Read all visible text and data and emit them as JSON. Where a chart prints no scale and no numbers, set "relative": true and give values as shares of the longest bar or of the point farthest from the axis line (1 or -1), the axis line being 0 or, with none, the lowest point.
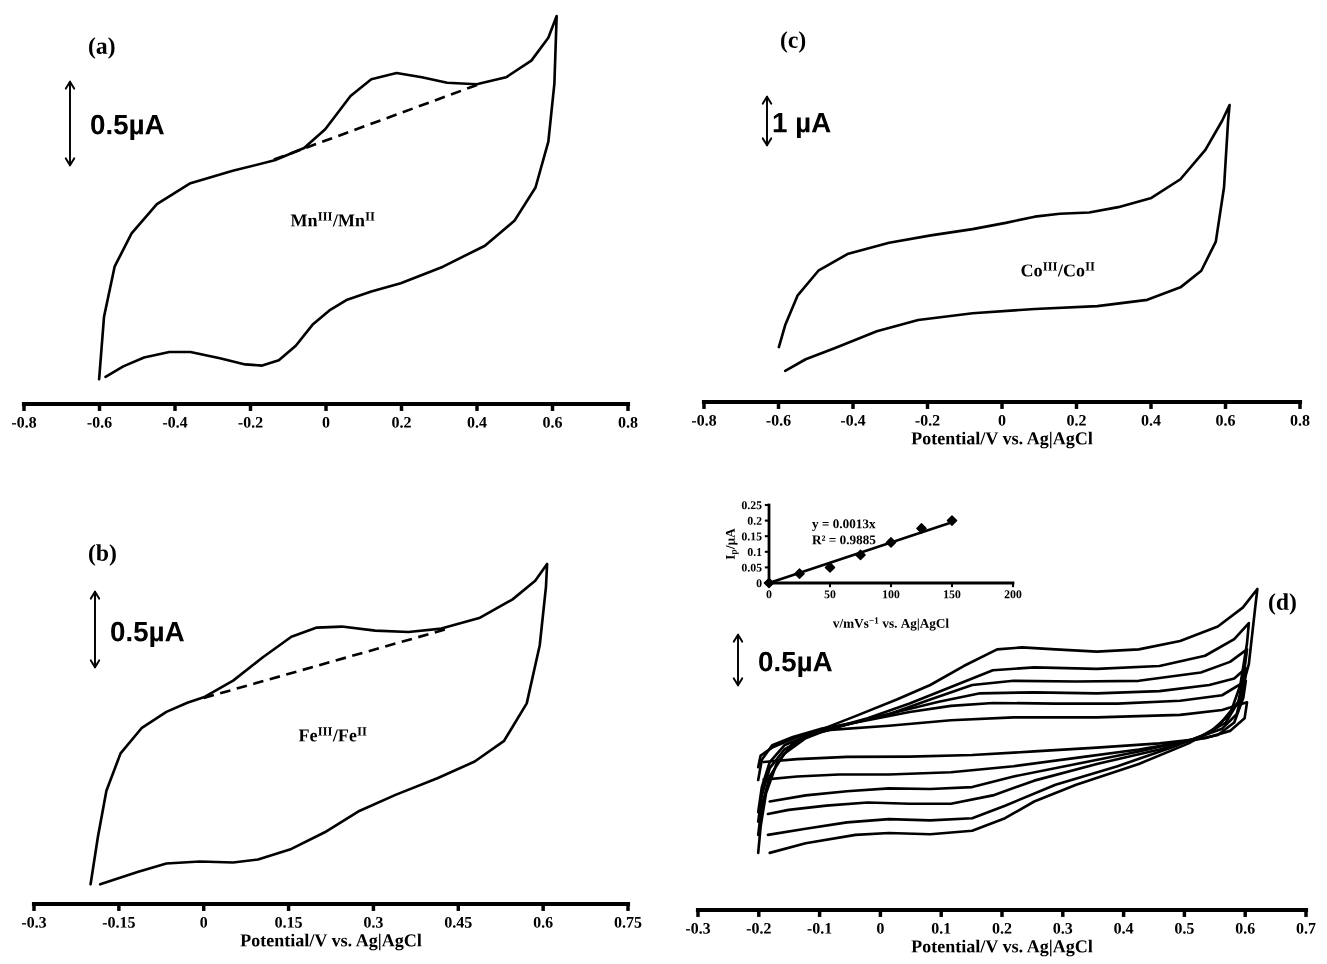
{
  "chart_data": [
    {
      "type": "line",
      "title": "(a)",
      "relative": true,
      "tick_labels": "x",
      "annotations": [
        "0.5µA",
        "Mn$^{III}$/Mn$^{II}$"
      ],
      "xlim": [
        -0.8,
        0.8
      ],
      "xticks": [
        -0.8,
        -0.6,
        -0.4,
        -0.2,
        0,
        0.2,
        0.4,
        0.6,
        0.8
      ],
      "series": [
        {
          "color": "#000000",
          "x": [
            -0.601,
            -0.588,
            -0.56,
            -0.515,
            -0.448,
            -0.359,
            -0.247,
            -0.136,
            -0.058,
            -0.002,
            0.065,
            0.12,
            0.187,
            0.254,
            0.321,
            0.399,
            0.477,
            0.544,
            0.589,
            0.611,
            0.605,
            0.589,
            0.555,
            0.499,
            0.421,
            0.31,
            0.198,
            0.12,
            0.054,
            0.009,
            -0.036,
            -0.08,
            -0.125,
            -0.169,
            -0.214,
            -0.281,
            -0.359,
            -0.415,
            -0.482,
            -0.537,
            -0.584
          ],
          "values": [
            0.064,
            0.225,
            0.354,
            0.44,
            0.515,
            0.569,
            0.601,
            0.628,
            0.66,
            0.708,
            0.794,
            0.837,
            0.853,
            0.842,
            0.828,
            0.824,
            0.842,
            0.885,
            0.944,
            1.0,
            0.826,
            0.676,
            0.558,
            0.472,
            0.408,
            0.354,
            0.311,
            0.29,
            0.268,
            0.241,
            0.204,
            0.15,
            0.113,
            0.099,
            0.102,
            0.118,
            0.134,
            0.134,
            0.12,
            0.097,
            0.07
          ]
        },
        {
          "color": "#000000",
          "line_style": "dashed",
          "x": [
            -0.138,
            0.405
          ],
          "values": [
            0.63,
            0.824
          ]
        }
      ]
    },
    {
      "type": "line",
      "title": "(c)",
      "relative": true,
      "tick_labels": "x",
      "xlabel": "Potential/V vs. Ag|AgCl",
      "annotations": [
        "1 µA",
        "Co$^{III}$/Co$^{II}$"
      ],
      "xlim": [
        -0.8,
        0.8
      ],
      "xticks": [
        -0.8,
        -0.6,
        -0.4,
        -0.2,
        0,
        0.2,
        0.4,
        0.6,
        0.8
      ],
      "series": [
        {
          "color": "#000000",
          "x": [
            -0.599,
            -0.582,
            -0.549,
            -0.493,
            -0.415,
            -0.303,
            -0.191,
            -0.079,
            0.01,
            0.088,
            0.155,
            0.234,
            0.312,
            0.401,
            0.479,
            0.546,
            0.591,
            0.611,
            0.607,
            0.596,
            0.574,
            0.535,
            0.479,
            0.39,
            0.256,
            0.088,
            -0.079,
            -0.225,
            -0.336,
            -0.448,
            -0.527,
            -0.582
          ],
          "values": [
            0.185,
            0.259,
            0.358,
            0.442,
            0.498,
            0.536,
            0.561,
            0.582,
            0.603,
            0.624,
            0.634,
            0.638,
            0.656,
            0.687,
            0.75,
            0.849,
            0.947,
            1.0,
            0.947,
            0.722,
            0.54,
            0.442,
            0.386,
            0.344,
            0.323,
            0.313,
            0.299,
            0.276,
            0.238,
            0.182,
            0.144,
            0.105
          ]
        }
      ]
    },
    {
      "type": "scatter",
      "xlabel": "v/mVs$^{−1}$ vs. Ag|AgCl",
      "ylabel": "I$_{p}$/µA",
      "annotations": [
        "y = 0.0013x",
        "R² = 0.9885"
      ],
      "xlim": [
        0,
        200
      ],
      "xticks": [
        0,
        50,
        100,
        150,
        200
      ],
      "ylim": [
        0,
        0.25
      ],
      "yticks": [
        0,
        0.05,
        0.1,
        0.15,
        0.2,
        0.25
      ],
      "series": [
        {
          "color": "#000000",
          "marker": "diamond",
          "x": [
            0,
            25,
            50,
            75,
            100,
            125,
            150
          ],
          "values": [
            0,
            0.03,
            0.05,
            0.09,
            0.13,
            0.175,
            0.2
          ]
        },
        {
          "type": "line",
          "color": "#000000",
          "x": [
            0,
            150
          ],
          "values": [
            0,
            0.195
          ]
        }
      ]
    },
    {
      "type": "line",
      "title": "(b)",
      "relative": true,
      "tick_labels": "x",
      "xlabel": "Potential/V vs. Ag|AgCl",
      "annotations": [
        "0.5µA",
        "Fe$^{III}$/Fe$^{II}$"
      ],
      "xlim": [
        -0.3,
        0.75
      ],
      "xticks": [
        -0.3,
        -0.15,
        0,
        0.15,
        0.3,
        0.45,
        0.6,
        0.75
      ],
      "series": [
        {
          "color": "#000000",
          "x": [
            -0.2,
            -0.187,
            -0.172,
            -0.147,
            -0.11,
            -0.066,
            -0.029,
            0.0,
            0.052,
            0.104,
            0.155,
            0.2,
            0.244,
            0.303,
            0.362,
            0.42,
            0.487,
            0.546,
            0.586,
            0.607,
            0.605,
            0.594,
            0.571,
            0.531,
            0.479,
            0.413,
            0.339,
            0.273,
            0.214,
            0.155,
            0.096,
            0.052,
            -0.007,
            -0.066,
            -0.117,
            -0.183
          ],
          "values": [
            0.058,
            0.198,
            0.333,
            0.443,
            0.517,
            0.565,
            0.592,
            0.608,
            0.657,
            0.725,
            0.786,
            0.813,
            0.816,
            0.804,
            0.8,
            0.81,
            0.841,
            0.896,
            0.951,
            1.0,
            0.933,
            0.761,
            0.59,
            0.48,
            0.419,
            0.37,
            0.321,
            0.272,
            0.211,
            0.162,
            0.131,
            0.122,
            0.125,
            0.119,
            0.094,
            0.058
          ]
        },
        {
          "color": "#000000",
          "line_style": "dashed",
          "x": [
            0.0,
            0.428
          ],
          "values": [
            0.606,
            0.808
          ]
        }
      ]
    },
    {
      "type": "line",
      "title": "(d)",
      "relative": true,
      "tick_labels": "x",
      "xlabel": "Potential/V vs. Ag|AgCl",
      "annotations": [
        "0.5µA"
      ],
      "xlim": [
        -0.3,
        0.7
      ],
      "xticks": [
        -0.3,
        -0.2,
        -0.1,
        0,
        0.1,
        0.2,
        0.3,
        0.4,
        0.5,
        0.6,
        0.7
      ],
      "series": [
        {
          "color": "#000000",
          "x": [
            -0.201,
            -0.197,
            -0.188,
            -0.171,
            -0.144,
            -0.103,
            -0.041,
            0.027,
            0.082,
            0.137,
            0.192,
            0.233,
            0.288,
            0.356,
            0.425,
            0.493,
            0.555,
            0.596,
            0.62,
            0.616,
            0.606,
            0.589,
            0.555,
            0.507,
            0.425,
            0.322,
            0.253,
            0.205,
            0.151,
            0.082,
            0.014,
            -0.041,
            -0.123,
            -0.182
          ],
          "values": [
            0.178,
            0.26,
            0.364,
            0.455,
            0.519,
            0.558,
            0.604,
            0.656,
            0.701,
            0.76,
            0.812,
            0.818,
            0.812,
            0.805,
            0.812,
            0.838,
            0.883,
            0.942,
            1.0,
            0.935,
            0.766,
            0.649,
            0.571,
            0.519,
            0.455,
            0.39,
            0.338,
            0.286,
            0.247,
            0.236,
            0.24,
            0.234,
            0.208,
            0.178
          ]
        },
        {
          "color": "#000000",
          "x": [
            -0.201,
            -0.195,
            -0.182,
            -0.158,
            -0.123,
            -0.082,
            -0.021,
            0.048,
            0.116,
            0.185,
            0.253,
            0.356,
            0.459,
            0.534,
            0.582,
            0.606,
            0.603,
            0.592,
            0.575,
            0.541,
            0.479,
            0.39,
            0.288,
            0.205,
            0.151,
            0.082,
            0.014,
            -0.055,
            -0.123,
            -0.185
          ],
          "values": [
            0.234,
            0.325,
            0.416,
            0.487,
            0.535,
            0.565,
            0.597,
            0.643,
            0.695,
            0.747,
            0.756,
            0.751,
            0.76,
            0.792,
            0.844,
            0.894,
            0.831,
            0.701,
            0.61,
            0.552,
            0.506,
            0.448,
            0.39,
            0.325,
            0.286,
            0.279,
            0.283,
            0.273,
            0.253,
            0.234
          ]
        },
        {
          "color": "#000000",
          "x": [
            -0.201,
            -0.195,
            -0.182,
            -0.158,
            -0.116,
            -0.055,
            0.014,
            0.082,
            0.151,
            0.219,
            0.322,
            0.425,
            0.527,
            0.575,
            0.603,
            0.599,
            0.589,
            0.568,
            0.527,
            0.459,
            0.356,
            0.253,
            0.185,
            0.116,
            0.048,
            -0.021,
            -0.089,
            -0.151,
            -0.185
          ],
          "values": [
            0.275,
            0.357,
            0.442,
            0.5,
            0.545,
            0.578,
            0.61,
            0.656,
            0.701,
            0.714,
            0.712,
            0.714,
            0.74,
            0.773,
            0.812,
            0.753,
            0.649,
            0.584,
            0.539,
            0.5,
            0.455,
            0.403,
            0.357,
            0.331,
            0.331,
            0.335,
            0.325,
            0.312,
            0.299
          ]
        },
        {
          "color": "#000000",
          "x": [
            -0.201,
            -0.195,
            -0.182,
            -0.158,
            -0.11,
            -0.041,
            0.027,
            0.096,
            0.164,
            0.253,
            0.356,
            0.459,
            0.541,
            0.582,
            0.601,
            0.599,
            0.586,
            0.562,
            0.514,
            0.425,
            0.322,
            0.219,
            0.151,
            0.082,
            0.014,
            -0.055,
            -0.123,
            -0.182
          ],
          "values": [
            0.305,
            0.383,
            0.461,
            0.513,
            0.552,
            0.584,
            0.617,
            0.649,
            0.675,
            0.678,
            0.675,
            0.682,
            0.701,
            0.721,
            0.753,
            0.701,
            0.61,
            0.565,
            0.532,
            0.494,
            0.455,
            0.416,
            0.383,
            0.377,
            0.379,
            0.37,
            0.357,
            0.338
          ]
        },
        {
          "color": "#000000",
          "x": [
            -0.201,
            -0.195,
            -0.178,
            -0.144,
            -0.096,
            -0.021,
            0.048,
            0.116,
            0.185,
            0.288,
            0.39,
            0.493,
            0.562,
            0.601,
            0.597,
            0.582,
            0.555,
            0.507,
            0.425,
            0.322,
            0.219,
            0.116,
            0.014,
            -0.068,
            -0.137,
            -0.192
          ],
          "values": [
            0.405,
            0.468,
            0.513,
            0.539,
            0.565,
            0.591,
            0.617,
            0.636,
            0.645,
            0.643,
            0.643,
            0.652,
            0.669,
            0.714,
            0.662,
            0.584,
            0.545,
            0.526,
            0.5,
            0.474,
            0.448,
            0.429,
            0.422,
            0.422,
            0.416,
            0.406
          ]
        },
        {
          "color": "#000000",
          "x": [
            -0.201,
            -0.197,
            -0.178,
            -0.137,
            -0.082,
            0.014,
            0.116,
            0.219,
            0.356,
            0.493,
            0.562,
            0.603,
            0.599,
            0.575,
            0.534,
            0.459,
            0.356,
            0.253,
            0.151,
            0.048,
            -0.055,
            -0.137,
            -0.192
          ],
          "values": [
            0.445,
            0.481,
            0.506,
            0.539,
            0.561,
            0.574,
            0.591,
            0.6,
            0.6,
            0.608,
            0.623,
            0.647,
            0.597,
            0.558,
            0.535,
            0.519,
            0.506,
            0.494,
            0.483,
            0.478,
            0.477,
            0.47,
            0.461
          ]
        }
      ]
    }
  ]
}
